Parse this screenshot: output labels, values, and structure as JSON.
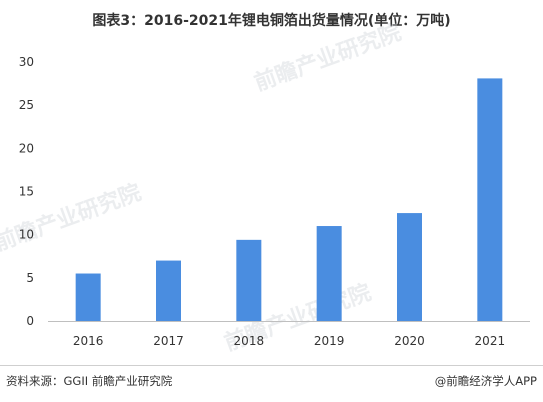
{
  "chart_data": {
    "type": "bar",
    "title": "图表3：2016-2021年锂电铜箔出货量情况(单位：万吨)",
    "categories": [
      "2016",
      "2017",
      "2018",
      "2019",
      "2020",
      "2021"
    ],
    "values": [
      5.5,
      7.0,
      9.4,
      11.0,
      12.5,
      28.1
    ],
    "ylim": [
      0,
      30
    ],
    "yticks": [
      "0",
      "5",
      "10",
      "15",
      "20",
      "25",
      "30"
    ],
    "grid": false,
    "bar_color": "#4a8de0"
  },
  "footer": {
    "source": "资料来源：GGII 前瞻产业研究院",
    "brand": "@前瞻经济学人APP"
  },
  "watermark": {
    "text": "前瞻产业研究院"
  }
}
